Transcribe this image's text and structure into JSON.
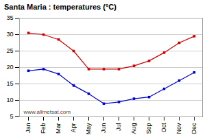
{
  "chart_data": {
    "type": "line",
    "title": "Santa Maria : temperatures (°C)",
    "categories": [
      "Jan",
      "Feb",
      "Mar",
      "Apr",
      "May",
      "Jun",
      "Jul",
      "Aug",
      "Sep",
      "Oct",
      "Nov",
      "Dec"
    ],
    "series": [
      {
        "color": "#cc0000",
        "values": [
          30.5,
          30.0,
          28.5,
          25.0,
          19.5,
          19.5,
          19.5,
          20.5,
          22.0,
          24.5,
          27.5,
          29.5
        ]
      },
      {
        "color": "#0000cc",
        "values": [
          19.0,
          19.5,
          18.0,
          14.5,
          12.0,
          9.0,
          9.5,
          10.5,
          11.0,
          13.5,
          16.0,
          18.5
        ]
      }
    ],
    "ylim": [
      5,
      35
    ],
    "yticks": [
      5,
      10,
      15,
      20,
      25,
      30,
      35
    ],
    "grid": "y",
    "marker": "square",
    "annotations": [
      "www.allmetsat.com"
    ]
  }
}
